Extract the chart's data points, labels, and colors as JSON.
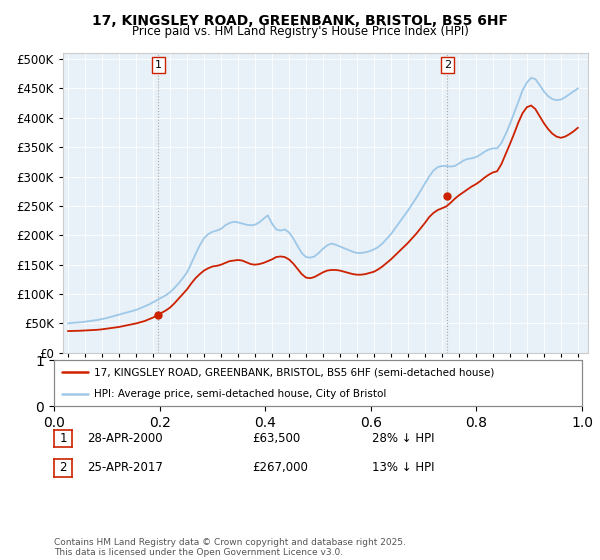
{
  "title": "17, KINGSLEY ROAD, GREENBANK, BRISTOL, BS5 6HF",
  "subtitle": "Price paid vs. HM Land Registry's House Price Index (HPI)",
  "hpi_color": "#9ec8e8",
  "price_color": "#cc2200",
  "vline_color": "#bbbbbb",
  "marker1_year": 2000.32,
  "marker1_price": 63500,
  "marker2_year": 2017.32,
  "marker2_price": 267000,
  "legend_line1": "17, KINGSLEY ROAD, GREENBANK, BRISTOL, BS5 6HF (semi-detached house)",
  "legend_line2": "HPI: Average price, semi-detached house, City of Bristol",
  "annotation1_date": "28-APR-2000",
  "annotation1_price": "£63,500",
  "annotation1_hpi": "28% ↓ HPI",
  "annotation2_date": "25-APR-2017",
  "annotation2_price": "£267,000",
  "annotation2_hpi": "13% ↓ HPI",
  "footer": "Contains HM Land Registry data © Crown copyright and database right 2025.\nThis data is licensed under the Open Government Licence v3.0.",
  "bg_color": "#e8f0f8",
  "yticks": [
    0,
    50000,
    100000,
    150000,
    200000,
    250000,
    300000,
    350000,
    400000,
    450000,
    500000
  ],
  "hpi_data": [
    [
      1995.0,
      50000
    ],
    [
      1995.25,
      51000
    ],
    [
      1995.5,
      51500
    ],
    [
      1995.75,
      52000
    ],
    [
      1996.0,
      53000
    ],
    [
      1996.25,
      54000
    ],
    [
      1996.5,
      55000
    ],
    [
      1996.75,
      56000
    ],
    [
      1997.0,
      57500
    ],
    [
      1997.25,
      59000
    ],
    [
      1997.5,
      61000
    ],
    [
      1997.75,
      63000
    ],
    [
      1998.0,
      65000
    ],
    [
      1998.25,
      67000
    ],
    [
      1998.5,
      69000
    ],
    [
      1998.75,
      71000
    ],
    [
      1999.0,
      73000
    ],
    [
      1999.25,
      76000
    ],
    [
      1999.5,
      79000
    ],
    [
      1999.75,
      82000
    ],
    [
      2000.0,
      86000
    ],
    [
      2000.25,
      90000
    ],
    [
      2000.5,
      94000
    ],
    [
      2000.75,
      98000
    ],
    [
      2001.0,
      103000
    ],
    [
      2001.25,
      110000
    ],
    [
      2001.5,
      118000
    ],
    [
      2001.75,
      127000
    ],
    [
      2002.0,
      137000
    ],
    [
      2002.25,
      152000
    ],
    [
      2002.5,
      168000
    ],
    [
      2002.75,
      183000
    ],
    [
      2003.0,
      195000
    ],
    [
      2003.25,
      202000
    ],
    [
      2003.5,
      206000
    ],
    [
      2003.75,
      208000
    ],
    [
      2004.0,
      211000
    ],
    [
      2004.25,
      217000
    ],
    [
      2004.5,
      221000
    ],
    [
      2004.75,
      223000
    ],
    [
      2005.0,
      222000
    ],
    [
      2005.25,
      220000
    ],
    [
      2005.5,
      218000
    ],
    [
      2005.75,
      217000
    ],
    [
      2006.0,
      218000
    ],
    [
      2006.25,
      222000
    ],
    [
      2006.5,
      228000
    ],
    [
      2006.75,
      234000
    ],
    [
      2007.0,
      220000
    ],
    [
      2007.25,
      210000
    ],
    [
      2007.5,
      208000
    ],
    [
      2007.75,
      210000
    ],
    [
      2008.0,
      205000
    ],
    [
      2008.25,
      195000
    ],
    [
      2008.5,
      182000
    ],
    [
      2008.75,
      170000
    ],
    [
      2009.0,
      163000
    ],
    [
      2009.25,
      162000
    ],
    [
      2009.5,
      164000
    ],
    [
      2009.75,
      170000
    ],
    [
      2010.0,
      177000
    ],
    [
      2010.25,
      183000
    ],
    [
      2010.5,
      186000
    ],
    [
      2010.75,
      184000
    ],
    [
      2011.0,
      181000
    ],
    [
      2011.25,
      178000
    ],
    [
      2011.5,
      175000
    ],
    [
      2011.75,
      172000
    ],
    [
      2012.0,
      170000
    ],
    [
      2012.25,
      170000
    ],
    [
      2012.5,
      171000
    ],
    [
      2012.75,
      173000
    ],
    [
      2013.0,
      176000
    ],
    [
      2013.25,
      180000
    ],
    [
      2013.5,
      186000
    ],
    [
      2013.75,
      194000
    ],
    [
      2014.0,
      202000
    ],
    [
      2014.25,
      212000
    ],
    [
      2014.5,
      222000
    ],
    [
      2014.75,
      232000
    ],
    [
      2015.0,
      242000
    ],
    [
      2015.25,
      253000
    ],
    [
      2015.5,
      264000
    ],
    [
      2015.75,
      276000
    ],
    [
      2016.0,
      288000
    ],
    [
      2016.25,
      300000
    ],
    [
      2016.5,
      310000
    ],
    [
      2016.75,
      316000
    ],
    [
      2017.0,
      318000
    ],
    [
      2017.25,
      318000
    ],
    [
      2017.5,
      317000
    ],
    [
      2017.75,
      318000
    ],
    [
      2018.0,
      322000
    ],
    [
      2018.25,
      327000
    ],
    [
      2018.5,
      330000
    ],
    [
      2018.75,
      331000
    ],
    [
      2019.0,
      333000
    ],
    [
      2019.25,
      337000
    ],
    [
      2019.5,
      342000
    ],
    [
      2019.75,
      346000
    ],
    [
      2020.0,
      348000
    ],
    [
      2020.25,
      348000
    ],
    [
      2020.5,
      357000
    ],
    [
      2020.75,
      372000
    ],
    [
      2021.0,
      389000
    ],
    [
      2021.25,
      408000
    ],
    [
      2021.5,
      427000
    ],
    [
      2021.75,
      447000
    ],
    [
      2022.0,
      460000
    ],
    [
      2022.25,
      468000
    ],
    [
      2022.5,
      466000
    ],
    [
      2022.75,
      456000
    ],
    [
      2023.0,
      445000
    ],
    [
      2023.25,
      437000
    ],
    [
      2023.5,
      432000
    ],
    [
      2023.75,
      430000
    ],
    [
      2024.0,
      431000
    ],
    [
      2024.25,
      435000
    ],
    [
      2024.5,
      440000
    ],
    [
      2024.75,
      445000
    ],
    [
      2025.0,
      450000
    ]
  ],
  "price_data": [
    [
      1995.0,
      37000
    ],
    [
      1995.25,
      37200
    ],
    [
      1995.5,
      37400
    ],
    [
      1995.75,
      37600
    ],
    [
      1996.0,
      38000
    ],
    [
      1996.25,
      38400
    ],
    [
      1996.5,
      38800
    ],
    [
      1996.75,
      39200
    ],
    [
      1997.0,
      40000
    ],
    [
      1997.25,
      41000
    ],
    [
      1997.5,
      42000
    ],
    [
      1997.75,
      43000
    ],
    [
      1998.0,
      44000
    ],
    [
      1998.25,
      45500
    ],
    [
      1998.5,
      47000
    ],
    [
      1998.75,
      48500
    ],
    [
      1999.0,
      50000
    ],
    [
      1999.25,
      52000
    ],
    [
      1999.5,
      54000
    ],
    [
      1999.75,
      57000
    ],
    [
      2000.0,
      60000
    ],
    [
      2000.25,
      64000
    ],
    [
      2000.5,
      68000
    ],
    [
      2000.75,
      72000
    ],
    [
      2001.0,
      77000
    ],
    [
      2001.25,
      84000
    ],
    [
      2001.5,
      92000
    ],
    [
      2001.75,
      100000
    ],
    [
      2002.0,
      108000
    ],
    [
      2002.25,
      118000
    ],
    [
      2002.5,
      127000
    ],
    [
      2002.75,
      134000
    ],
    [
      2003.0,
      140000
    ],
    [
      2003.25,
      144000
    ],
    [
      2003.5,
      147000
    ],
    [
      2003.75,
      148000
    ],
    [
      2004.0,
      150000
    ],
    [
      2004.25,
      153000
    ],
    [
      2004.5,
      156000
    ],
    [
      2004.75,
      157000
    ],
    [
      2005.0,
      158000
    ],
    [
      2005.25,
      157000
    ],
    [
      2005.5,
      154000
    ],
    [
      2005.75,
      151000
    ],
    [
      2006.0,
      150000
    ],
    [
      2006.25,
      151000
    ],
    [
      2006.5,
      153000
    ],
    [
      2006.75,
      156000
    ],
    [
      2007.0,
      159000
    ],
    [
      2007.25,
      163000
    ],
    [
      2007.5,
      164000
    ],
    [
      2007.75,
      163000
    ],
    [
      2008.0,
      159000
    ],
    [
      2008.25,
      152000
    ],
    [
      2008.5,
      143000
    ],
    [
      2008.75,
      134000
    ],
    [
      2009.0,
      128000
    ],
    [
      2009.25,
      127000
    ],
    [
      2009.5,
      129000
    ],
    [
      2009.75,
      133000
    ],
    [
      2010.0,
      137000
    ],
    [
      2010.25,
      140000
    ],
    [
      2010.5,
      141000
    ],
    [
      2010.75,
      141000
    ],
    [
      2011.0,
      140000
    ],
    [
      2011.25,
      138000
    ],
    [
      2011.5,
      136000
    ],
    [
      2011.75,
      134000
    ],
    [
      2012.0,
      133000
    ],
    [
      2012.25,
      133000
    ],
    [
      2012.5,
      134000
    ],
    [
      2012.75,
      136000
    ],
    [
      2013.0,
      138000
    ],
    [
      2013.25,
      142000
    ],
    [
      2013.5,
      147000
    ],
    [
      2013.75,
      153000
    ],
    [
      2014.0,
      159000
    ],
    [
      2014.25,
      166000
    ],
    [
      2014.5,
      173000
    ],
    [
      2014.75,
      180000
    ],
    [
      2015.0,
      187000
    ],
    [
      2015.25,
      195000
    ],
    [
      2015.5,
      203000
    ],
    [
      2015.75,
      212000
    ],
    [
      2016.0,
      221000
    ],
    [
      2016.25,
      231000
    ],
    [
      2016.5,
      238000
    ],
    [
      2016.75,
      243000
    ],
    [
      2017.0,
      246000
    ],
    [
      2017.25,
      249000
    ],
    [
      2017.5,
      255000
    ],
    [
      2017.75,
      262000
    ],
    [
      2018.0,
      268000
    ],
    [
      2018.25,
      273000
    ],
    [
      2018.5,
      278000
    ],
    [
      2018.75,
      283000
    ],
    [
      2019.0,
      287000
    ],
    [
      2019.25,
      292000
    ],
    [
      2019.5,
      298000
    ],
    [
      2019.75,
      303000
    ],
    [
      2020.0,
      307000
    ],
    [
      2020.25,
      309000
    ],
    [
      2020.5,
      321000
    ],
    [
      2020.75,
      338000
    ],
    [
      2021.0,
      355000
    ],
    [
      2021.25,
      373000
    ],
    [
      2021.5,
      392000
    ],
    [
      2021.75,
      408000
    ],
    [
      2022.0,
      418000
    ],
    [
      2022.25,
      421000
    ],
    [
      2022.5,
      415000
    ],
    [
      2022.75,
      403000
    ],
    [
      2023.0,
      391000
    ],
    [
      2023.25,
      381000
    ],
    [
      2023.5,
      373000
    ],
    [
      2023.75,
      368000
    ],
    [
      2024.0,
      366000
    ],
    [
      2024.25,
      368000
    ],
    [
      2024.5,
      372000
    ],
    [
      2024.75,
      377000
    ],
    [
      2025.0,
      383000
    ]
  ]
}
